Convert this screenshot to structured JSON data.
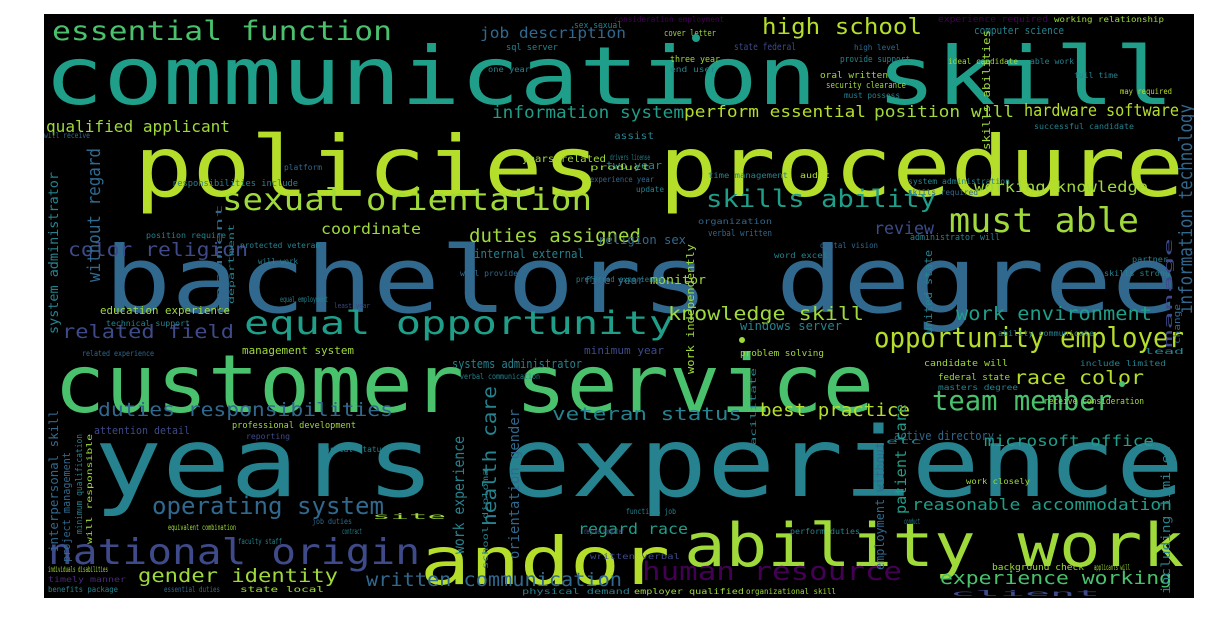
{
  "palette": {
    "background": "#000000",
    "yellowgreen": "#b5de2b",
    "lime": "#9fda3a",
    "green": "#4ac16d",
    "teal": "#1f9e89",
    "tealdark": "#26828e",
    "blue": "#31688e",
    "slate": "#3e4a89",
    "purple": "#440154",
    "violet": "#482878"
  },
  "words": [
    "communication skill",
    "policies procedure",
    "bachelors degree",
    "years experience",
    "customer service",
    "ability work",
    "andor",
    "national origin",
    "essential function",
    "equal opportunity",
    "sexual orientation",
    "must able",
    "opportunity employer",
    "skills ability",
    "team member",
    "operating system",
    "human resource",
    "high school",
    "written communication",
    "experience working",
    "gender identity",
    "duties responsibilities",
    "related field",
    "knowledge skill",
    "work environment",
    "information technology",
    "veteran status",
    "best practice",
    "race color",
    "color religion",
    "duties assigned",
    "health care",
    "reasonable accommodation",
    "qualified applicant",
    "information system",
    "perform essential",
    "position will",
    "hardware software",
    "job description",
    "working knowledge",
    "without regard",
    "review",
    "coordinate",
    "microsoft office",
    "regard race",
    "work experience",
    "orientation gender",
    "patient care",
    "system administrator",
    "education experience",
    "systems administrator",
    "management system",
    "employment without",
    "including limited",
    "interpersonal skill",
    "project management",
    "attention detail",
    "computer science",
    "skills abilities",
    "manage",
    "internal external",
    "religion sex",
    "monitor",
    "work independently",
    "two year",
    "five year",
    "minimum year",
    "windows server",
    "active directory",
    "sex sexual",
    "sql server",
    "state federal",
    "cover letter",
    "consideration employment",
    "experience required",
    "working relationship",
    "three year",
    "end user",
    "one year",
    "provide support",
    "oral written",
    "security clearance",
    "must possess",
    "high level",
    "ideal candidate",
    "able work",
    "full time",
    "may required",
    "years related",
    "assist",
    "successful candidate",
    "platform",
    "responsibilities include",
    "experience year",
    "time management",
    "audit",
    "update",
    "system administration",
    "skills required",
    "verbal written",
    "organization",
    "word excel",
    "dental vision",
    "administrator will",
    "position require",
    "protected veteran",
    "will work",
    "will provide",
    "preferred experience",
    "united state",
    "skills strong",
    "partner",
    "least year",
    "technical support",
    "related experience",
    "verbal communication",
    "problem solving",
    "ability communicate",
    "candidate will",
    "federal state",
    "masters degree",
    "include limited",
    "receive consideration",
    "professional development",
    "reporting",
    "marital status",
    "minimum qualification",
    "will responsible",
    "school diploma",
    "equivalent combination",
    "faculty staff",
    "job duties",
    "contract",
    "site",
    "functions job",
    "facilitate",
    "written verbal",
    "physical demand",
    "employer qualified",
    "organizational skill",
    "background check",
    "applicants will",
    "client",
    "individuals disabilities",
    "timely manner",
    "benefits package",
    "essential duties",
    "state local",
    "equal employment",
    "will receive",
    "document",
    "department",
    "drivers license",
    "product",
    "work closely",
    "perform duties",
    "degree computer",
    "conduct",
    "etc",
    "change",
    "lead",
    "vendor"
  ]
}
